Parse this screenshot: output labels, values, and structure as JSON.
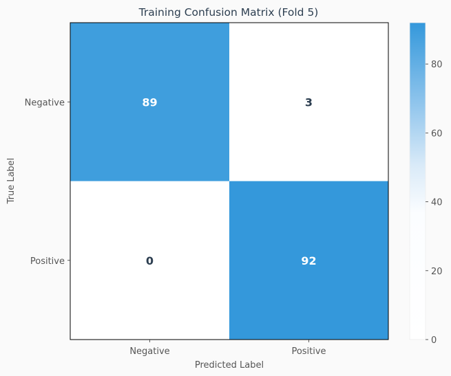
{
  "chart_data": {
    "type": "heatmap",
    "title": "Training Confusion Matrix (Fold 5)",
    "xlabel": "Predicted Label",
    "ylabel": "True Label",
    "x_categories": [
      "Negative",
      "Positive"
    ],
    "y_categories": [
      "Negative",
      "Positive"
    ],
    "matrix": [
      [
        89,
        3
      ],
      [
        0,
        92
      ]
    ],
    "colorbar": {
      "range": [
        0,
        92
      ],
      "ticks": [
        0,
        20,
        40,
        60,
        80
      ],
      "tick_labels": [
        "0",
        "20",
        "40",
        "60",
        "80"
      ],
      "color_low": "#ffffff",
      "color_high": "#3498db"
    },
    "text_color_dark": "#2c3e50",
    "text_color_light": "#ffffff",
    "grid": false
  }
}
